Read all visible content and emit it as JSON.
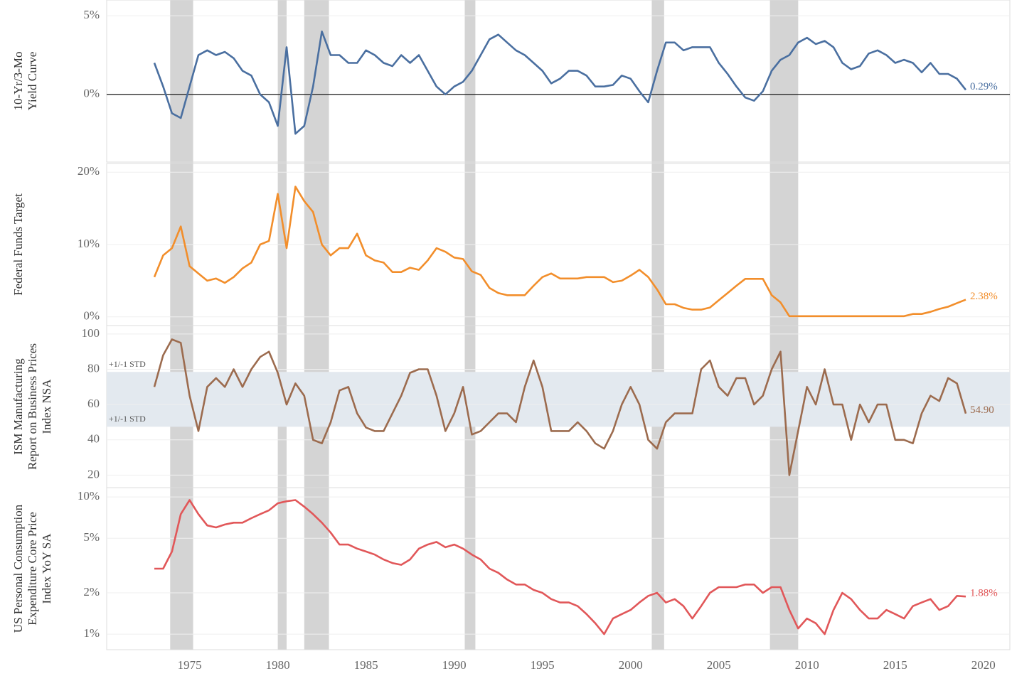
{
  "recessions": [
    [
      1973.9,
      1975.2
    ],
    [
      1980.0,
      1980.5
    ],
    [
      1981.5,
      1982.9
    ],
    [
      1990.6,
      1991.2
    ],
    [
      2001.2,
      2001.9
    ],
    [
      2007.9,
      2009.5
    ]
  ],
  "chart_data": [
    {
      "type": "line",
      "y_label": [
        "10-Yr/3-Mo",
        "Yield Curve"
      ],
      "color": "#4a6fa0",
      "zero_line": true,
      "xlim": [
        1970.3,
        2021.5
      ],
      "ylim": [
        -4.3,
        6
      ],
      "yticks": [
        {
          "value": 0,
          "label": "0%"
        },
        {
          "value": 5,
          "label": "5%"
        }
      ],
      "last_value_label": "0.29%",
      "x": [
        1973,
        1973.5,
        1974,
        1974.5,
        1975,
        1975.5,
        1976,
        1976.5,
        1977,
        1977.5,
        1978,
        1978.5,
        1979,
        1979.5,
        1980,
        1980.5,
        1981,
        1981.5,
        1982,
        1982.5,
        1983,
        1983.5,
        1984,
        1984.5,
        1985,
        1985.5,
        1986,
        1986.5,
        1987,
        1987.5,
        1988,
        1988.5,
        1989,
        1989.5,
        1990,
        1990.5,
        1991,
        1991.5,
        1992,
        1992.5,
        1993,
        1993.5,
        1994,
        1994.5,
        1995,
        1995.5,
        1996,
        1996.5,
        1997,
        1997.5,
        1998,
        1998.5,
        1999,
        1999.5,
        2000,
        2000.5,
        2001,
        2001.5,
        2002,
        2002.5,
        2003,
        2003.5,
        2004,
        2004.5,
        2005,
        2005.5,
        2006,
        2006.5,
        2007,
        2007.5,
        2008,
        2008.5,
        2009,
        2009.5,
        2010,
        2010.5,
        2011,
        2011.5,
        2012,
        2012.5,
        2013,
        2013.5,
        2014,
        2014.5,
        2015,
        2015.5,
        2016,
        2016.5,
        2017,
        2017.5,
        2018,
        2018.5,
        2019
      ],
      "values": [
        2.0,
        0.5,
        -1.2,
        -1.5,
        0.5,
        2.5,
        2.8,
        2.5,
        2.7,
        2.3,
        1.5,
        1.2,
        0,
        -0.5,
        -2.0,
        3.0,
        -2.5,
        -2.0,
        0.5,
        4.0,
        2.5,
        2.5,
        2.0,
        2.0,
        2.8,
        2.5,
        2.0,
        1.8,
        2.5,
        2.0,
        2.5,
        1.5,
        0.5,
        0,
        0.5,
        0.8,
        1.5,
        2.5,
        3.5,
        3.8,
        3.3,
        2.8,
        2.5,
        2.0,
        1.5,
        0.7,
        1.0,
        1.5,
        1.5,
        1.2,
        0.5,
        0.5,
        0.6,
        1.2,
        1.0,
        0.2,
        -0.5,
        1.5,
        3.3,
        3.3,
        2.8,
        3.0,
        3.0,
        3.0,
        2.0,
        1.3,
        0.5,
        -0.2,
        -0.4,
        0.2,
        1.5,
        2.2,
        2.5,
        3.3,
        3.6,
        3.2,
        3.4,
        3.0,
        2.0,
        1.6,
        1.8,
        2.6,
        2.8,
        2.5,
        2.0,
        2.2,
        2.0,
        1.4,
        2.0,
        1.3,
        1.3,
        1.0,
        0.29
      ]
    },
    {
      "type": "line",
      "y_label": [
        "Federal Funds Target"
      ],
      "color": "#f28e2b",
      "xlim": [
        1970.3,
        2021.5
      ],
      "ylim": [
        -1.2,
        21.2
      ],
      "yticks": [
        {
          "value": 0,
          "label": "0%"
        },
        {
          "value": 10,
          "label": "10%"
        },
        {
          "value": 20,
          "label": "20%"
        }
      ],
      "last_value_label": "2.38%",
      "x": [
        1973,
        1973.5,
        1974,
        1974.5,
        1975,
        1975.5,
        1976,
        1976.5,
        1977,
        1977.5,
        1978,
        1978.5,
        1979,
        1979.5,
        1980,
        1980.5,
        1981,
        1981.5,
        1982,
        1982.5,
        1983,
        1983.5,
        1984,
        1984.5,
        1985,
        1985.5,
        1986,
        1986.5,
        1987,
        1987.5,
        1988,
        1988.5,
        1989,
        1989.5,
        1990,
        1990.5,
        1991,
        1991.5,
        1992,
        1992.5,
        1993,
        1993.5,
        1994,
        1994.5,
        1995,
        1995.5,
        1996,
        1996.5,
        1997,
        1997.5,
        1998,
        1998.5,
        1999,
        1999.5,
        2000,
        2000.5,
        2001,
        2001.5,
        2002,
        2002.5,
        2003,
        2003.5,
        2004,
        2004.5,
        2005,
        2005.5,
        2006,
        2006.5,
        2007,
        2007.5,
        2008,
        2008.5,
        2009,
        2009.5,
        2010,
        2010.5,
        2011,
        2011.5,
        2012,
        2012.5,
        2013,
        2013.5,
        2014,
        2014.5,
        2015,
        2015.5,
        2016,
        2016.5,
        2017,
        2017.5,
        2018,
        2018.5,
        2019
      ],
      "values": [
        5.5,
        8.5,
        9.5,
        12.5,
        7,
        6,
        5,
        5.3,
        4.7,
        5.5,
        6.7,
        7.5,
        10,
        10.5,
        17,
        9.5,
        18,
        16,
        14.5,
        10,
        8.5,
        9.5,
        9.5,
        11.5,
        8.5,
        7.8,
        7.5,
        6.2,
        6.2,
        6.8,
        6.5,
        7.8,
        9.5,
        9,
        8.2,
        8,
        6.3,
        5.8,
        4,
        3.3,
        3,
        3,
        3,
        4.3,
        5.5,
        6,
        5.3,
        5.3,
        5.3,
        5.5,
        5.5,
        5.5,
        4.8,
        5,
        5.7,
        6.5,
        5.5,
        3.8,
        1.75,
        1.75,
        1.25,
        1,
        1,
        1.3,
        2.3,
        3.3,
        4.3,
        5.25,
        5.25,
        5.25,
        3,
        2,
        0.1,
        0.1,
        0.1,
        0.1,
        0.1,
        0.1,
        0.1,
        0.1,
        0.1,
        0.1,
        0.1,
        0.1,
        0.1,
        0.1,
        0.4,
        0.4,
        0.7,
        1.1,
        1.4,
        1.9,
        2.38
      ]
    },
    {
      "type": "line",
      "y_label": [
        "ISM Manufacturing",
        "Report on Business Prices",
        "Index NSA"
      ],
      "color": "#9c6b4e",
      "xlim": [
        1970.3,
        2021.5
      ],
      "ylim": [
        12.9,
        104.8
      ],
      "yticks": [
        20,
        40,
        60,
        80,
        100
      ],
      "band": [
        47.4,
        78.5
      ],
      "band_labels": [
        "+1/-1 STD",
        "+1/-1 STD"
      ],
      "last_value_label": "54.90",
      "x": [
        1973,
        1973.5,
        1974,
        1974.5,
        1975,
        1975.5,
        1976,
        1976.5,
        1977,
        1977.5,
        1978,
        1978.5,
        1979,
        1979.5,
        1980,
        1980.5,
        1981,
        1981.5,
        1982,
        1982.5,
        1983,
        1983.5,
        1984,
        1984.5,
        1985,
        1985.5,
        1986,
        1986.5,
        1987,
        1987.5,
        1988,
        1988.5,
        1989,
        1989.5,
        1990,
        1990.5,
        1991,
        1991.5,
        1992,
        1992.5,
        1993,
        1993.5,
        1994,
        1994.5,
        1995,
        1995.5,
        1996,
        1996.5,
        1997,
        1997.5,
        1998,
        1998.5,
        1999,
        1999.5,
        2000,
        2000.5,
        2001,
        2001.5,
        2002,
        2002.5,
        2003,
        2003.5,
        2004,
        2004.5,
        2005,
        2005.5,
        2006,
        2006.5,
        2007,
        2007.5,
        2008,
        2008.5,
        2009,
        2009.5,
        2010,
        2010.5,
        2011,
        2011.5,
        2012,
        2012.5,
        2013,
        2013.5,
        2014,
        2014.5,
        2015,
        2015.5,
        2016,
        2016.5,
        2017,
        2017.5,
        2018,
        2018.5,
        2019
      ],
      "values": [
        70,
        88,
        97,
        95,
        65,
        45,
        70,
        75,
        70,
        80,
        70,
        80,
        87,
        90,
        78,
        60,
        72,
        65,
        40,
        38,
        50,
        68,
        70,
        55,
        47,
        45,
        45,
        55,
        65,
        78,
        80,
        80,
        65,
        45,
        55,
        70,
        43,
        45,
        50,
        55,
        55,
        50,
        70,
        85,
        70,
        45,
        45,
        45,
        50,
        45,
        38,
        35,
        45,
        60,
        70,
        60,
        40,
        35,
        50,
        55,
        55,
        55,
        80,
        85,
        70,
        65,
        75,
        75,
        60,
        65,
        80,
        90,
        20,
        45,
        70,
        60,
        80,
        60,
        60,
        40,
        60,
        50,
        60,
        60,
        40,
        40,
        38,
        55,
        65,
        62,
        75,
        72,
        54.9
      ]
    },
    {
      "type": "line",
      "y_label": [
        "US Personal Consumption",
        "Expenditure Core Price",
        "Index YoY SA"
      ],
      "color": "#e15759",
      "log_scale": true,
      "xlim": [
        1970.3,
        2021.5
      ],
      "ylim": [
        0.77,
        11.7
      ],
      "yticks": [
        {
          "value": 1,
          "label": "1%"
        },
        {
          "value": 2,
          "label": "2%"
        },
        {
          "value": 5,
          "label": "5%"
        },
        {
          "value": 10,
          "label": "10%"
        }
      ],
      "xticks": [
        1975,
        1980,
        1985,
        1990,
        1995,
        2000,
        2005,
        2010,
        2015,
        2020
      ],
      "last_value_label": "1.88%",
      "x": [
        1973,
        1973.5,
        1974,
        1974.5,
        1975,
        1975.5,
        1976,
        1976.5,
        1977,
        1977.5,
        1978,
        1978.5,
        1979,
        1979.5,
        1980,
        1980.5,
        1981,
        1981.5,
        1982,
        1982.5,
        1983,
        1983.5,
        1984,
        1984.5,
        1985,
        1985.5,
        1986,
        1986.5,
        1987,
        1987.5,
        1988,
        1988.5,
        1989,
        1989.5,
        1990,
        1990.5,
        1991,
        1991.5,
        1992,
        1992.5,
        1993,
        1993.5,
        1994,
        1994.5,
        1995,
        1995.5,
        1996,
        1996.5,
        1997,
        1997.5,
        1998,
        1998.5,
        1999,
        1999.5,
        2000,
        2000.5,
        2001,
        2001.5,
        2002,
        2002.5,
        2003,
        2003.5,
        2004,
        2004.5,
        2005,
        2005.5,
        2006,
        2006.5,
        2007,
        2007.5,
        2008,
        2008.5,
        2009,
        2009.5,
        2010,
        2010.5,
        2011,
        2011.5,
        2012,
        2012.5,
        2013,
        2013.5,
        2014,
        2014.5,
        2015,
        2015.5,
        2016,
        2016.5,
        2017,
        2017.5,
        2018,
        2018.5,
        2019
      ],
      "values": [
        3.0,
        3.0,
        4.0,
        7.5,
        9.5,
        7.5,
        6.2,
        6.0,
        6.3,
        6.5,
        6.5,
        7.0,
        7.5,
        8.0,
        9.0,
        9.3,
        9.5,
        8.5,
        7.5,
        6.5,
        5.5,
        4.5,
        4.5,
        4.2,
        4.0,
        3.8,
        3.5,
        3.3,
        3.2,
        3.5,
        4.2,
        4.5,
        4.7,
        4.3,
        4.5,
        4.2,
        3.8,
        3.5,
        3.0,
        2.8,
        2.5,
        2.3,
        2.3,
        2.1,
        2.0,
        1.8,
        1.7,
        1.7,
        1.6,
        1.4,
        1.2,
        1.0,
        1.3,
        1.4,
        1.5,
        1.7,
        1.9,
        2.0,
        1.7,
        1.8,
        1.6,
        1.3,
        1.6,
        2.0,
        2.2,
        2.2,
        2.2,
        2.3,
        2.3,
        2.0,
        2.2,
        2.2,
        1.5,
        1.1,
        1.3,
        1.2,
        1.0,
        1.5,
        2.0,
        1.8,
        1.5,
        1.3,
        1.3,
        1.5,
        1.4,
        1.3,
        1.6,
        1.7,
        1.8,
        1.5,
        1.6,
        1.9,
        1.88
      ]
    }
  ]
}
